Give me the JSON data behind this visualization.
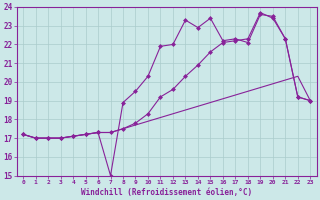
{
  "xlabel": "Windchill (Refroidissement éolien,°C)",
  "xlim": [
    -0.5,
    23.5
  ],
  "ylim": [
    15,
    24
  ],
  "xticks": [
    0,
    1,
    2,
    3,
    4,
    5,
    6,
    7,
    8,
    9,
    10,
    11,
    12,
    13,
    14,
    15,
    16,
    17,
    18,
    19,
    20,
    21,
    22,
    23
  ],
  "yticks": [
    15,
    16,
    17,
    18,
    19,
    20,
    21,
    22,
    23,
    24
  ],
  "bg_color": "#cce8e8",
  "grid_color": "#aacccc",
  "line_color": "#882299",
  "line1_x": [
    0,
    1,
    2,
    3,
    4,
    5,
    6,
    7,
    8,
    9,
    10,
    11,
    12,
    13,
    14,
    15,
    16,
    17,
    18,
    19,
    20,
    21,
    22,
    23
  ],
  "line1_y": [
    17.2,
    17.0,
    17.0,
    17.0,
    17.1,
    17.2,
    17.3,
    15.0,
    18.9,
    19.5,
    20.3,
    21.9,
    22.0,
    23.3,
    22.9,
    23.4,
    22.2,
    22.3,
    22.1,
    23.6,
    23.5,
    22.3,
    19.2,
    19.0
  ],
  "line2_x": [
    0,
    1,
    2,
    3,
    4,
    5,
    6,
    7,
    8,
    9,
    10,
    11,
    12,
    13,
    14,
    15,
    16,
    17,
    18,
    19,
    20,
    21,
    22,
    23
  ],
  "line2_y": [
    17.2,
    17.0,
    17.0,
    17.0,
    17.1,
    17.2,
    17.3,
    17.3,
    17.5,
    17.7,
    17.9,
    18.1,
    18.3,
    18.5,
    18.7,
    18.9,
    19.1,
    19.3,
    19.5,
    19.7,
    19.9,
    20.1,
    20.3,
    19.0
  ],
  "line3_x": [
    0,
    1,
    2,
    3,
    4,
    5,
    6,
    7,
    8,
    9,
    10,
    11,
    12,
    13,
    14,
    15,
    16,
    17,
    18,
    19,
    20,
    21,
    22,
    23
  ],
  "line3_y": [
    17.2,
    17.0,
    17.0,
    17.0,
    17.1,
    17.2,
    17.3,
    17.3,
    17.5,
    17.8,
    18.3,
    19.2,
    19.6,
    20.3,
    20.9,
    21.6,
    22.1,
    22.2,
    22.3,
    23.7,
    23.4,
    22.3,
    19.2,
    19.0
  ],
  "marker_x": [
    0,
    1,
    2,
    3,
    4,
    5,
    6,
    7,
    8,
    9,
    10,
    11,
    12,
    13,
    14,
    15,
    16,
    17,
    18,
    19,
    20,
    21,
    22,
    23
  ],
  "marker1_y": [
    17.2,
    17.0,
    17.0,
    17.0,
    17.1,
    17.2,
    17.3,
    15.0,
    18.9,
    19.5,
    20.3,
    21.9,
    22.0,
    23.3,
    22.9,
    23.4,
    22.2,
    22.3,
    22.1,
    23.6,
    23.5,
    22.3,
    19.2,
    19.0
  ],
  "marker3_y": [
    17.2,
    17.0,
    17.0,
    17.0,
    17.1,
    17.2,
    17.3,
    17.3,
    17.5,
    17.8,
    18.3,
    19.2,
    19.6,
    20.3,
    20.9,
    21.6,
    22.1,
    22.2,
    22.3,
    23.7,
    23.4,
    22.3,
    19.2,
    19.0
  ]
}
